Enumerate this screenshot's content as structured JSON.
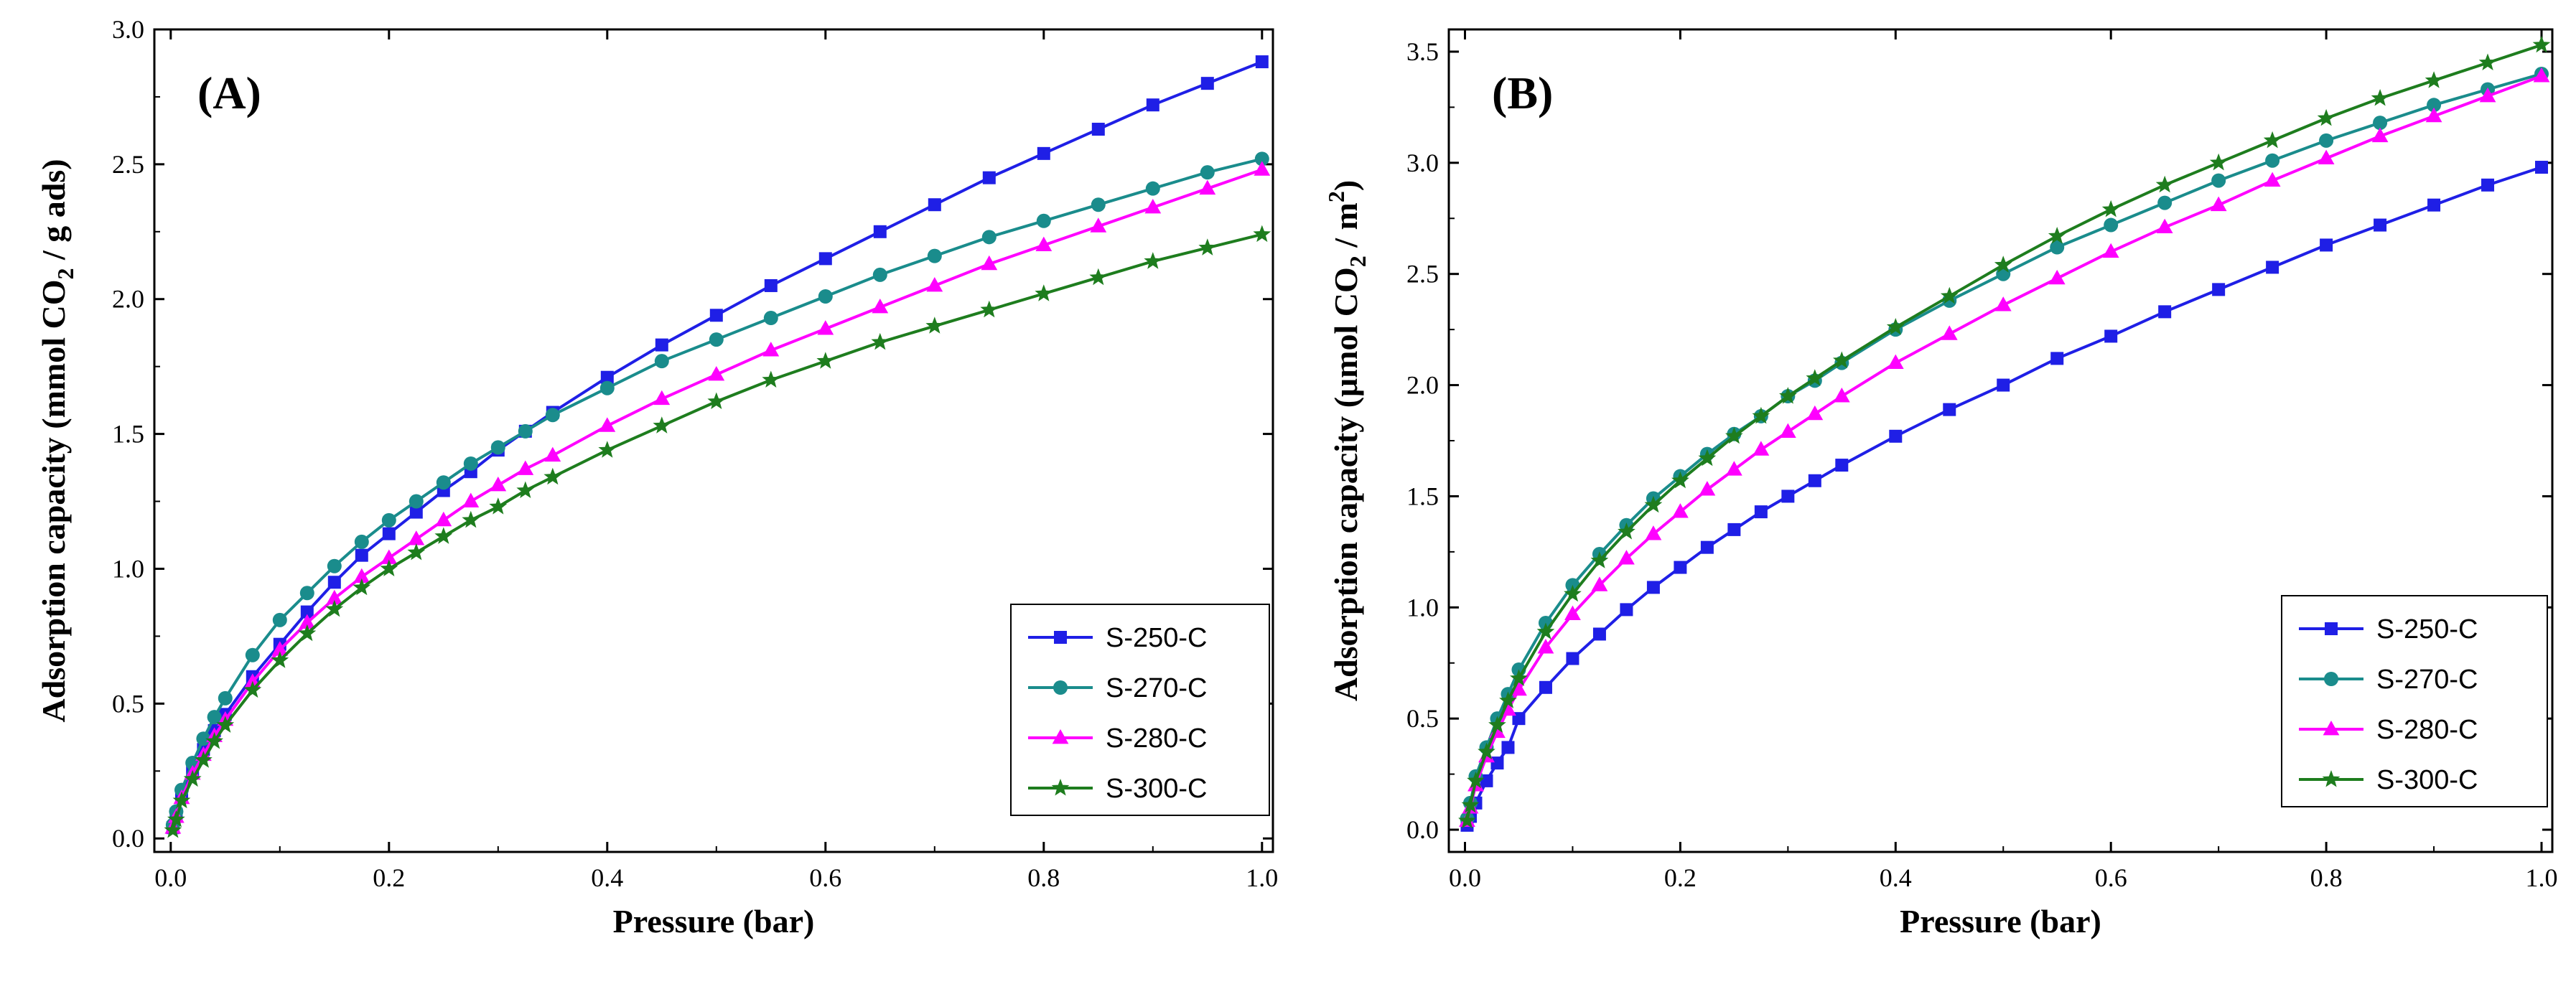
{
  "chart_data": [
    {
      "type": "line",
      "panel_label": "(A)",
      "xlabel": "Pressure (bar)",
      "ylabel_parts": [
        "Adsorption capacity (mmol CO",
        "2",
        " / g ads)"
      ],
      "xlim": [
        -0.015,
        1.01
      ],
      "ylim": [
        -0.05,
        3.0
      ],
      "xticks": [
        0.0,
        0.2,
        0.4,
        0.6,
        0.8,
        1.0
      ],
      "xtick_labels": [
        "0.0",
        "0.2",
        "0.4",
        "0.6",
        "0.8",
        "1.0"
      ],
      "yticks": [
        0.0,
        0.5,
        1.0,
        1.5,
        2.0,
        2.5,
        3.0
      ],
      "ytick_labels": [
        "0.0",
        "0.5",
        "1.0",
        "1.5",
        "2.0",
        "2.5",
        "3.0"
      ],
      "legend_position": "bottom-right",
      "x": [
        0.002,
        0.005,
        0.01,
        0.02,
        0.03,
        0.04,
        0.05,
        0.075,
        0.1,
        0.125,
        0.15,
        0.175,
        0.2,
        0.225,
        0.25,
        0.275,
        0.3,
        0.325,
        0.35,
        0.4,
        0.45,
        0.5,
        0.55,
        0.6,
        0.65,
        0.7,
        0.75,
        0.8,
        0.85,
        0.9,
        0.95,
        1.0
      ],
      "series": [
        {
          "name": "S-250-C",
          "color": "#1f1fe6",
          "marker": "square",
          "values": [
            0.04,
            0.09,
            0.16,
            0.25,
            0.33,
            0.4,
            0.46,
            0.6,
            0.72,
            0.84,
            0.95,
            1.05,
            1.13,
            1.21,
            1.29,
            1.36,
            1.44,
            1.51,
            1.58,
            1.71,
            1.83,
            1.94,
            2.05,
            2.15,
            2.25,
            2.35,
            2.45,
            2.54,
            2.63,
            2.72,
            2.8,
            2.88
          ]
        },
        {
          "name": "S-270-C",
          "color": "#1a8c8c",
          "marker": "circle",
          "values": [
            0.05,
            0.1,
            0.18,
            0.28,
            0.37,
            0.45,
            0.52,
            0.68,
            0.81,
            0.91,
            1.01,
            1.1,
            1.18,
            1.25,
            1.32,
            1.39,
            1.45,
            1.51,
            1.57,
            1.67,
            1.77,
            1.85,
            1.93,
            2.01,
            2.09,
            2.16,
            2.23,
            2.29,
            2.35,
            2.41,
            2.47,
            2.52
          ]
        },
        {
          "name": "S-280-C",
          "color": "#ff00ff",
          "marker": "triangle",
          "values": [
            0.04,
            0.08,
            0.15,
            0.24,
            0.31,
            0.38,
            0.44,
            0.58,
            0.7,
            0.8,
            0.89,
            0.97,
            1.04,
            1.11,
            1.18,
            1.25,
            1.31,
            1.37,
            1.42,
            1.53,
            1.63,
            1.72,
            1.81,
            1.89,
            1.97,
            2.05,
            2.13,
            2.2,
            2.27,
            2.34,
            2.41,
            2.48
          ]
        },
        {
          "name": "S-300-C",
          "color": "#1e7d1e",
          "marker": "star",
          "values": [
            0.03,
            0.07,
            0.14,
            0.22,
            0.29,
            0.36,
            0.42,
            0.55,
            0.66,
            0.76,
            0.85,
            0.93,
            1.0,
            1.06,
            1.12,
            1.18,
            1.23,
            1.29,
            1.34,
            1.44,
            1.53,
            1.62,
            1.7,
            1.77,
            1.84,
            1.9,
            1.96,
            2.02,
            2.08,
            2.14,
            2.19,
            2.24
          ]
        }
      ]
    },
    {
      "type": "line",
      "panel_label": "(B)",
      "xlabel": "Pressure (bar)",
      "ylabel_parts": [
        "Adsorption capacity (μmol CO",
        "2",
        " / m",
        "2",
        ")"
      ],
      "xlim": [
        -0.015,
        1.01
      ],
      "ylim": [
        -0.1,
        3.6
      ],
      "xticks": [
        0.0,
        0.2,
        0.4,
        0.6,
        0.8,
        1.0
      ],
      "xtick_labels": [
        "0.0",
        "0.2",
        "0.4",
        "0.6",
        "0.8",
        "1.0"
      ],
      "yticks": [
        0.0,
        0.5,
        1.0,
        1.5,
        2.0,
        2.5,
        3.0,
        3.5
      ],
      "ytick_labels": [
        "0.0",
        "0.5",
        "1.0",
        "1.5",
        "2.0",
        "2.5",
        "3.0",
        "3.5"
      ],
      "legend_position": "bottom-right",
      "x": [
        0.002,
        0.005,
        0.01,
        0.02,
        0.03,
        0.04,
        0.05,
        0.075,
        0.1,
        0.125,
        0.15,
        0.175,
        0.2,
        0.225,
        0.25,
        0.275,
        0.3,
        0.325,
        0.35,
        0.4,
        0.45,
        0.5,
        0.55,
        0.6,
        0.65,
        0.7,
        0.75,
        0.8,
        0.85,
        0.9,
        0.95,
        1.0
      ],
      "series": [
        {
          "name": "S-250-C",
          "color": "#1f1fe6",
          "marker": "square",
          "values": [
            0.02,
            0.06,
            0.12,
            0.22,
            0.3,
            0.37,
            0.5,
            0.64,
            0.77,
            0.88,
            0.99,
            1.09,
            1.18,
            1.27,
            1.35,
            1.43,
            1.5,
            1.57,
            1.64,
            1.77,
            1.89,
            2.0,
            2.12,
            2.22,
            2.33,
            2.43,
            2.53,
            2.63,
            2.72,
            2.81,
            2.9,
            2.98
          ]
        },
        {
          "name": "S-270-C",
          "color": "#1a8c8c",
          "marker": "circle",
          "values": [
            0.05,
            0.12,
            0.24,
            0.37,
            0.5,
            0.61,
            0.72,
            0.93,
            1.1,
            1.24,
            1.37,
            1.49,
            1.59,
            1.69,
            1.78,
            1.86,
            1.95,
            2.02,
            2.1,
            2.25,
            2.38,
            2.5,
            2.62,
            2.72,
            2.82,
            2.92,
            3.01,
            3.1,
            3.18,
            3.26,
            3.33,
            3.4
          ]
        },
        {
          "name": "S-280-C",
          "color": "#ff00ff",
          "marker": "triangle",
          "values": [
            0.04,
            0.1,
            0.2,
            0.33,
            0.44,
            0.54,
            0.63,
            0.82,
            0.97,
            1.1,
            1.22,
            1.33,
            1.43,
            1.53,
            1.62,
            1.71,
            1.79,
            1.87,
            1.95,
            2.1,
            2.23,
            2.36,
            2.48,
            2.6,
            2.71,
            2.81,
            2.92,
            3.02,
            3.12,
            3.21,
            3.3,
            3.39
          ]
        },
        {
          "name": "S-300-C",
          "color": "#1e7d1e",
          "marker": "star",
          "values": [
            0.04,
            0.11,
            0.22,
            0.35,
            0.47,
            0.58,
            0.68,
            0.89,
            1.06,
            1.21,
            1.34,
            1.46,
            1.57,
            1.67,
            1.77,
            1.86,
            1.95,
            2.03,
            2.11,
            2.26,
            2.4,
            2.54,
            2.67,
            2.79,
            2.9,
            3.0,
            3.1,
            3.2,
            3.29,
            3.37,
            3.45,
            3.53
          ]
        }
      ]
    }
  ]
}
